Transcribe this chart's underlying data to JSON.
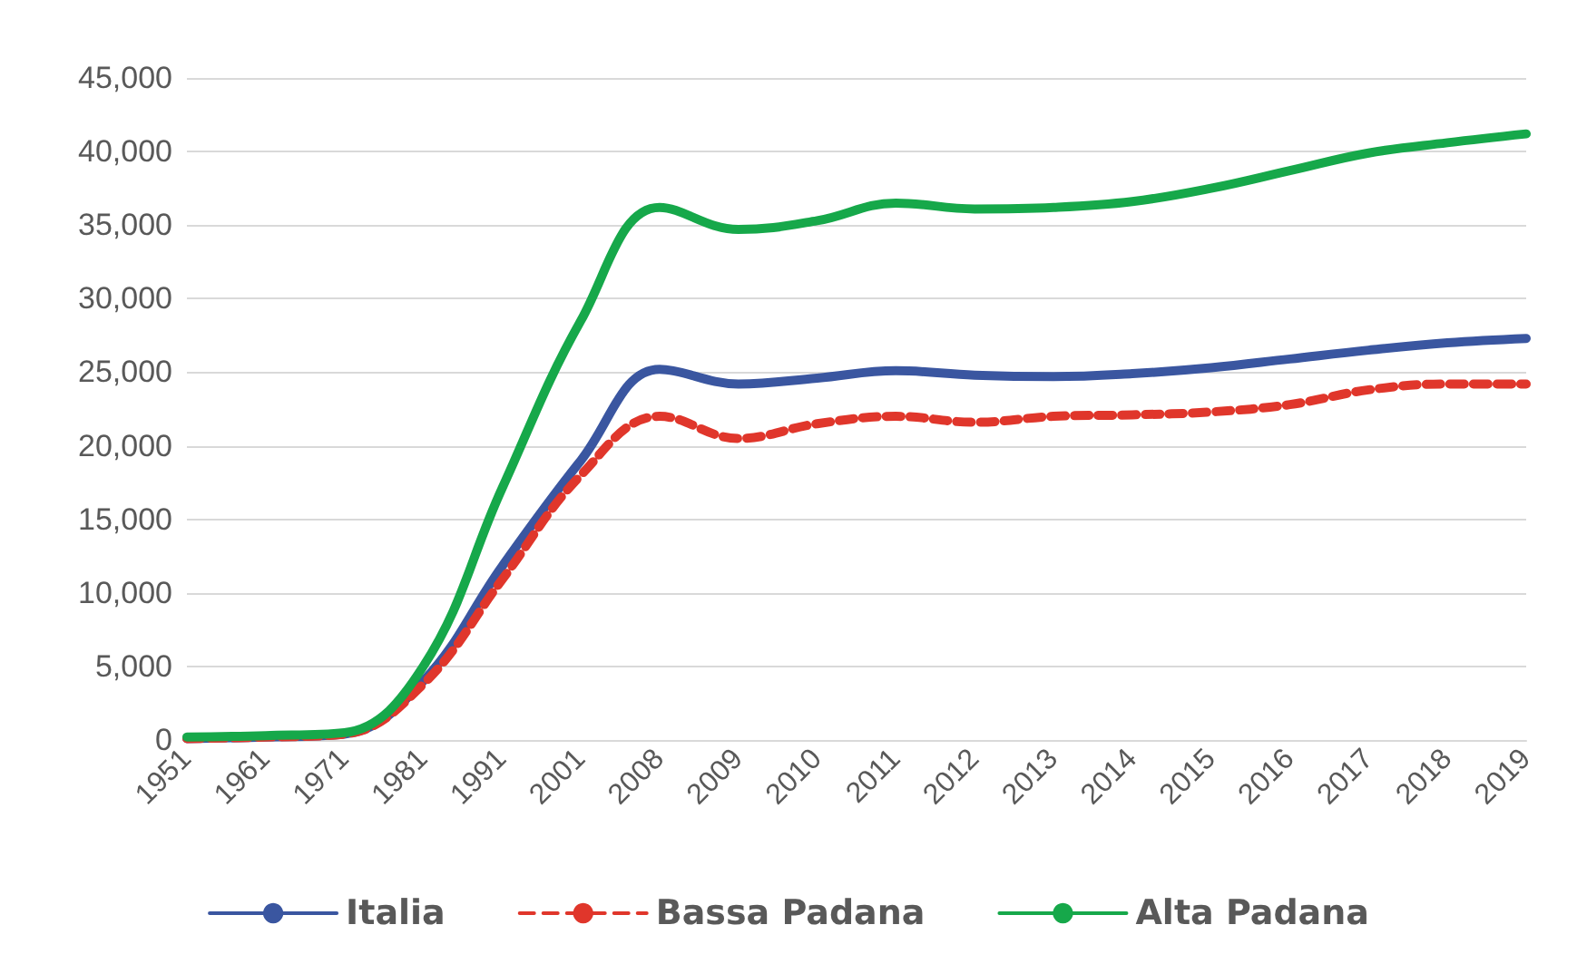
{
  "chart_data": {
    "type": "line",
    "categories": [
      "1951",
      "1961",
      "1971",
      "1981",
      "1991",
      "2001",
      "2008",
      "2009",
      "2010",
      "2011",
      "2012",
      "2013",
      "2014",
      "2015",
      "2016",
      "2017",
      "2018",
      "2019"
    ],
    "series": [
      {
        "name": "Italia",
        "color": "#3a56a0",
        "line_style": "solid",
        "values": [
          100,
          200,
          400,
          4000,
          11800,
          19000,
          25200,
          24200,
          24600,
          25100,
          24800,
          24700,
          24900,
          25300,
          25900,
          26500,
          27000,
          27300
        ]
      },
      {
        "name": "Bassa Padana",
        "color": "#e0362b",
        "line_style": "dashed",
        "values": [
          100,
          200,
          400,
          3800,
          10900,
          18000,
          22000,
          20500,
          21500,
          22000,
          21600,
          22000,
          22100,
          22300,
          22800,
          23800,
          24200,
          24200
        ]
      },
      {
        "name": "Alta Padana",
        "color": "#16a84a",
        "line_style": "solid",
        "values": [
          200,
          300,
          500,
          5000,
          17100,
          28500,
          36200,
          34700,
          35300,
          36500,
          36100,
          36200,
          36600,
          37500,
          38700,
          39900,
          40600,
          41200
        ]
      }
    ],
    "ylim": [
      0,
      45000
    ],
    "yticks": [
      0,
      {
        "value": 5000,
        "label": "5,000"
      },
      {
        "value": 10000,
        "label": "10,000"
      },
      {
        "value": 15000,
        "label": "15,000"
      },
      {
        "value": 20000,
        "label": "20,000"
      },
      {
        "value": 25000,
        "label": "25,000"
      },
      {
        "value": 30000,
        "label": "30,000"
      },
      {
        "value": 35000,
        "label": "35,000"
      },
      {
        "value": 40000,
        "label": "40,000"
      },
      {
        "value": 45000,
        "label": "45,000"
      }
    ],
    "grid": "y",
    "legend": "bottom",
    "marker": "none"
  }
}
